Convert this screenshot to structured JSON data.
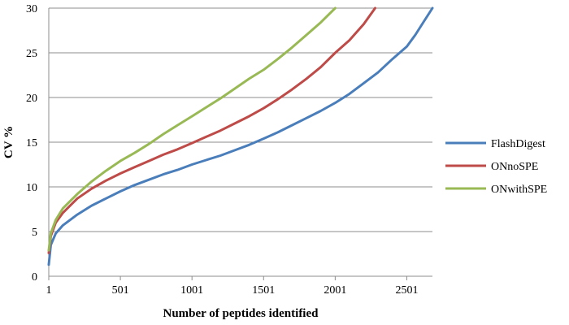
{
  "chart_data": {
    "type": "line",
    "title": "",
    "xlabel": "Number of peptides identified",
    "ylabel": "CV %",
    "xlim": [
      1,
      2680
    ],
    "ylim": [
      0,
      30
    ],
    "x_ticks": [
      1,
      501,
      1001,
      1501,
      2001,
      2501
    ],
    "y_ticks": [
      0,
      5,
      10,
      15,
      20,
      25,
      30
    ],
    "grid": "horizontal",
    "legend_position": "right",
    "series": [
      {
        "name": "FlashDigest",
        "color": "#4a7ebb",
        "points": [
          [
            1,
            1.3
          ],
          [
            15,
            3.5
          ],
          [
            50,
            4.8
          ],
          [
            100,
            5.7
          ],
          [
            200,
            6.9
          ],
          [
            300,
            7.9
          ],
          [
            400,
            8.7
          ],
          [
            501,
            9.5
          ],
          [
            600,
            10.2
          ],
          [
            700,
            10.8
          ],
          [
            800,
            11.4
          ],
          [
            900,
            11.9
          ],
          [
            1001,
            12.5
          ],
          [
            1100,
            13.0
          ],
          [
            1200,
            13.5
          ],
          [
            1300,
            14.1
          ],
          [
            1400,
            14.7
          ],
          [
            1501,
            15.4
          ],
          [
            1600,
            16.1
          ],
          [
            1700,
            16.9
          ],
          [
            1800,
            17.7
          ],
          [
            1900,
            18.5
          ],
          [
            2001,
            19.4
          ],
          [
            2100,
            20.4
          ],
          [
            2200,
            21.6
          ],
          [
            2300,
            22.8
          ],
          [
            2400,
            24.3
          ],
          [
            2501,
            25.7
          ],
          [
            2560,
            27.0
          ],
          [
            2620,
            28.5
          ],
          [
            2680,
            30.0
          ]
        ]
      },
      {
        "name": "ONnoSPE",
        "color": "#be4b48",
        "points": [
          [
            1,
            2.6
          ],
          [
            15,
            4.5
          ],
          [
            50,
            6.0
          ],
          [
            100,
            7.1
          ],
          [
            200,
            8.7
          ],
          [
            300,
            9.8
          ],
          [
            400,
            10.7
          ],
          [
            501,
            11.5
          ],
          [
            600,
            12.2
          ],
          [
            700,
            12.9
          ],
          [
            800,
            13.6
          ],
          [
            900,
            14.2
          ],
          [
            1001,
            14.9
          ],
          [
            1100,
            15.6
          ],
          [
            1200,
            16.3
          ],
          [
            1300,
            17.1
          ],
          [
            1400,
            17.9
          ],
          [
            1501,
            18.8
          ],
          [
            1600,
            19.8
          ],
          [
            1700,
            20.9
          ],
          [
            1800,
            22.1
          ],
          [
            1900,
            23.4
          ],
          [
            2001,
            25.0
          ],
          [
            2100,
            26.4
          ],
          [
            2200,
            28.2
          ],
          [
            2280,
            30.0
          ]
        ]
      },
      {
        "name": "ONwithSPE",
        "color": "#98b954",
        "points": [
          [
            1,
            2.9
          ],
          [
            15,
            4.8
          ],
          [
            50,
            6.3
          ],
          [
            100,
            7.6
          ],
          [
            200,
            9.2
          ],
          [
            300,
            10.6
          ],
          [
            400,
            11.8
          ],
          [
            501,
            12.9
          ],
          [
            600,
            13.8
          ],
          [
            700,
            14.8
          ],
          [
            800,
            15.9
          ],
          [
            900,
            16.9
          ],
          [
            1001,
            17.9
          ],
          [
            1100,
            18.9
          ],
          [
            1200,
            19.9
          ],
          [
            1300,
            21.0
          ],
          [
            1400,
            22.1
          ],
          [
            1501,
            23.1
          ],
          [
            1600,
            24.3
          ],
          [
            1700,
            25.6
          ],
          [
            1800,
            27.0
          ],
          [
            1900,
            28.4
          ],
          [
            2001,
            30.0
          ]
        ]
      }
    ]
  }
}
